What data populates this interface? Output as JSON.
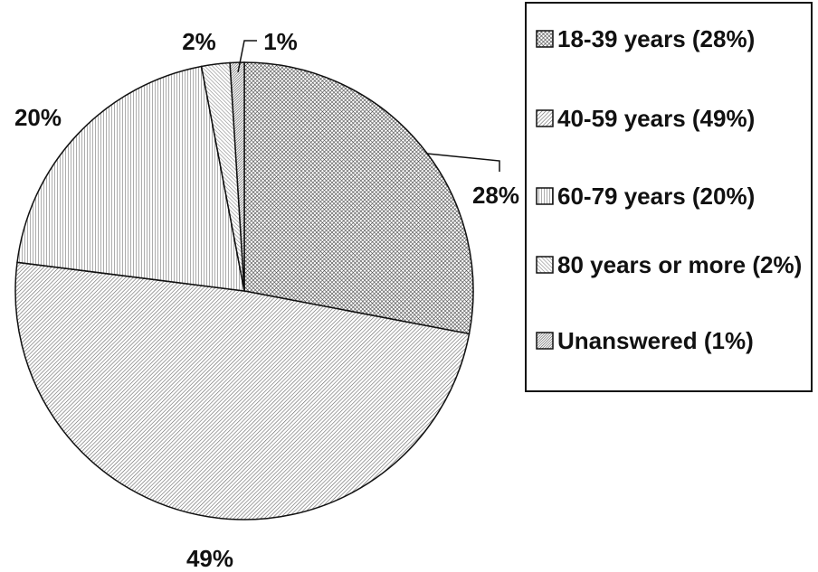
{
  "chart_data": {
    "type": "pie",
    "categories": [
      "18-39 years (28%)",
      "40-59 years (49%)",
      "60-79 years (20%)",
      "80 years or more (2%)",
      "Unanswered (1%)"
    ],
    "values": [
      28,
      49,
      20,
      2,
      1
    ],
    "value_labels": [
      "28%",
      "49%",
      "20%",
      "2%",
      "1%"
    ],
    "colors": [
      "#444444",
      "#666666",
      "#777777",
      "#888888",
      "#555555"
    ]
  }
}
